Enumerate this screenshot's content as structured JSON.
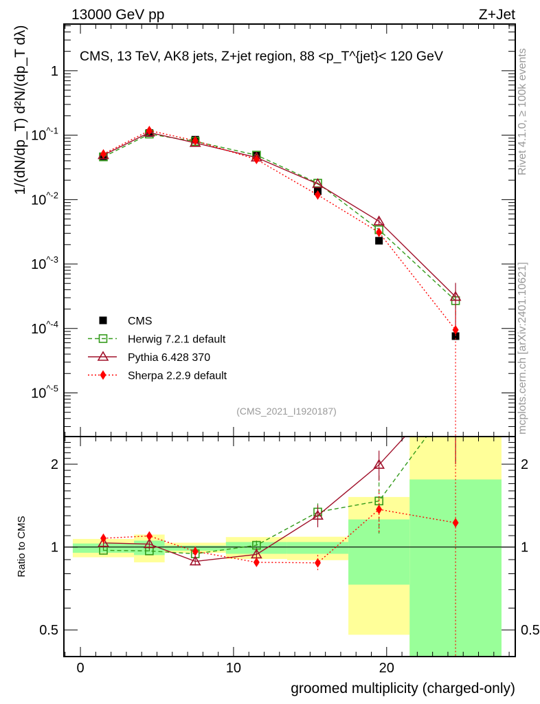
{
  "header": {
    "left": "13000 GeV pp",
    "right": "Z+Jet"
  },
  "side_text": {
    "rivet": "Rivet 4.1.0, ≥ 100k events",
    "mcplots": "mcplots.cern.ch [arXiv:2401.10621]"
  },
  "chart_data": [
    {
      "type": "line",
      "panel": "main",
      "title": "CMS, 13 TeV, AK8 jets, Z+jet region, 88 <p_T^{jet}< 120 GeV",
      "title_parts": {
        "pre": "CMS, 13 TeV, AK8 jets, Z+jet region, 88 <p",
        "sup": "{jet}",
        "sub": "T",
        "post": "}< 120 GeV"
      },
      "ylabel": "1/(dN/dp_T) d²N/(dp_T dλ)",
      "yscale": "log",
      "ylim": [
        2.1e-06,
        5.3
      ],
      "xlim": [
        -1.08,
        28.4
      ],
      "y_tick_labels": [
        {
          "v": 1,
          "label": "1"
        },
        {
          "v": 0.1,
          "label": "10^-1"
        },
        {
          "v": 0.01,
          "label": "10^-2"
        },
        {
          "v": 0.001,
          "label": "10^-3"
        },
        {
          "v": 0.0001,
          "label": "10^-4"
        },
        {
          "v": 1e-05,
          "label": "10^-5"
        }
      ],
      "watermark": "(CMS_2021_I1920187)",
      "x": [
        1.5,
        4.5,
        7.5,
        11.5,
        15.5,
        19.5,
        24.5
      ],
      "series": [
        {
          "name": "CMS",
          "color": "#000000",
          "marker": "square-filled",
          "line": "none",
          "values": [
            0.047,
            0.108,
            0.085,
            0.048,
            0.0135,
            0.0023,
            7.6e-05
          ]
        },
        {
          "name": "Herwig 7.2.1 default",
          "color": "#339a1a",
          "marker": "square-open",
          "line": "dashed",
          "values": [
            0.046,
            0.104,
            0.08,
            0.049,
            0.018,
            0.0034,
            0.00027
          ],
          "errors": [
            0,
            0,
            0,
            0,
            0,
            0,
            0.00012
          ]
        },
        {
          "name": "Pythia 6.428 370",
          "color": "#a0102a",
          "marker": "triangle-open",
          "line": "solid",
          "values": [
            0.049,
            0.11,
            0.076,
            0.045,
            0.0175,
            0.0046,
            0.00031
          ],
          "errors": [
            0,
            0,
            0,
            0,
            0,
            0.0006,
            0.0002
          ]
        },
        {
          "name": "Sherpa 2.2.9 default",
          "color": "#ff0000",
          "marker": "diamond-filled",
          "line": "dotted",
          "values": [
            0.051,
            0.118,
            0.082,
            0.042,
            0.0118,
            0.0031,
            9.5e-05
          ],
          "errors": [
            0,
            0,
            0,
            0,
            0,
            0,
            9.49e-05
          ]
        }
      ],
      "legend_placement": "lower-left"
    },
    {
      "type": "line",
      "panel": "ratio",
      "ylabel": "Ratio to CMS",
      "xlabel": "groomed multiplicity (charged-only)",
      "yscale": "log",
      "ylim": [
        0.4,
        2.52
      ],
      "xlim": [
        -1.08,
        28.4
      ],
      "x_ticks": [
        {
          "v": 0,
          "label": "0"
        },
        {
          "v": 10,
          "label": "10"
        },
        {
          "v": 20,
          "label": "20"
        }
      ],
      "y_ticks": [
        {
          "v": 0.5,
          "label": "0.5"
        },
        {
          "v": 1,
          "label": "1"
        },
        {
          "v": 2,
          "label": "2"
        }
      ],
      "bins": [
        [
          -0.5,
          3.5
        ],
        [
          3.5,
          5.5
        ],
        [
          5.5,
          9.5
        ],
        [
          9.5,
          13.5
        ],
        [
          13.5,
          17.5
        ],
        [
          17.5,
          21.5
        ],
        [
          21.5,
          27.5
        ]
      ],
      "band_total": [
        [
          0.918,
          1.07
        ],
        [
          0.88,
          1.11
        ],
        [
          0.953,
          1.037
        ],
        [
          0.905,
          1.087
        ],
        [
          0.896,
          1.09
        ],
        [
          0.48,
          1.52
        ],
        [
          0.3,
          3.0
        ]
      ],
      "band_stat": [
        [
          0.953,
          1.03
        ],
        [
          0.935,
          1.055
        ],
        [
          0.97,
          1.012
        ],
        [
          0.945,
          1.043
        ],
        [
          0.945,
          1.043
        ],
        [
          0.73,
          1.26
        ],
        [
          0.3,
          1.76
        ]
      ],
      "band_colors": {
        "total": "#ffff99",
        "stat": "#99ff99"
      },
      "x": [
        1.5,
        4.5,
        7.5,
        11.5,
        15.5,
        19.5,
        24.5
      ],
      "series": [
        {
          "name": "Herwig 7.2.1 default",
          "values": [
            0.973,
            0.968,
            0.945,
            1.015,
            1.34,
            1.47,
            3.5
          ],
          "errors": [
            0.03,
            0.03,
            0.03,
            0.04,
            0.1,
            0.35,
            1.5
          ]
        },
        {
          "name": "Pythia 6.428 370",
          "values": [
            1.035,
            1.025,
            0.887,
            0.94,
            1.3,
            1.99,
            4.0
          ],
          "errors": [
            0.04,
            0.04,
            0.03,
            0.04,
            0.12,
            0.25,
            2.0
          ]
        },
        {
          "name": "Sherpa 2.2.9 default",
          "values": [
            1.076,
            1.097,
            0.964,
            0.88,
            0.876,
            1.37,
            1.225
          ],
          "errors": [
            0.04,
            0.04,
            0.04,
            0.03,
            0.06,
            0.25,
            1.2
          ]
        }
      ]
    }
  ]
}
